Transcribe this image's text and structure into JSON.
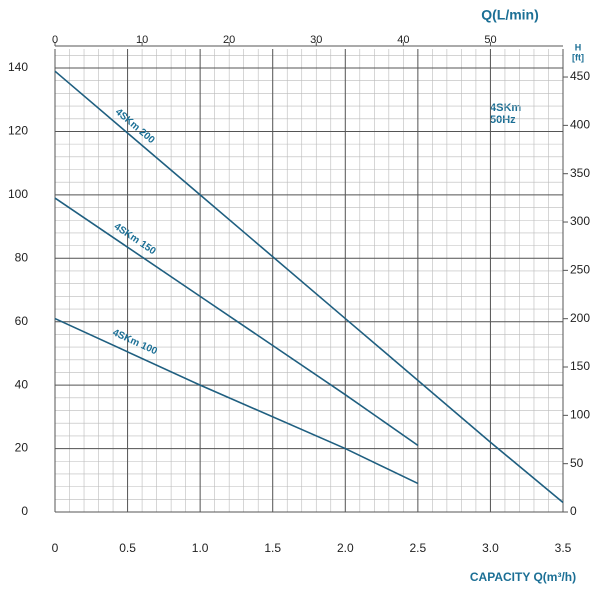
{
  "chart_data": {
    "type": "line",
    "x_label": "CAPACITY Q(m³/h)",
    "x2_label": "Q(L/min)",
    "y2_label": "H",
    "y2_unit": "[ft]",
    "annotations": [
      "4SKm",
      "50Hz"
    ],
    "xlim": [
      0,
      3.5
    ],
    "xticks": [
      0,
      0.5,
      {
        "value": 1,
        "label": "1.0"
      },
      1.5,
      {
        "value": 2,
        "label": "2.0"
      },
      2.5,
      {
        "value": 3,
        "label": "3.0"
      },
      3.5
    ],
    "x2lim": [
      0,
      58.33
    ],
    "x2ticks": [
      0,
      10,
      20,
      30,
      40,
      50
    ],
    "ylim": [
      0,
      146
    ],
    "yticks": [
      0,
      20,
      40,
      60,
      80,
      100,
      120,
      140
    ],
    "y2lim": [
      0,
      479
    ],
    "y2ticks": [
      0,
      50,
      100,
      150,
      200,
      250,
      300,
      350,
      400,
      450
    ],
    "grid": true,
    "minor_xstep": 0.1,
    "minor_ystep": 4,
    "series": [
      {
        "name": "4SKm 200",
        "color": "#1f5f80",
        "x": [
          0,
          1,
          2,
          3,
          3.5
        ],
        "values": [
          139,
          100,
          61,
          22,
          3
        ]
      },
      {
        "name": "4SKm 150",
        "color": "#1f5f80",
        "x": [
          0,
          1,
          2,
          2.5
        ],
        "values": [
          99,
          68,
          37,
          21
        ]
      },
      {
        "name": "4SKm 100",
        "color": "#1f5f80",
        "x": [
          0,
          1,
          2,
          2.5
        ],
        "values": [
          61,
          40,
          20,
          9
        ]
      }
    ]
  }
}
